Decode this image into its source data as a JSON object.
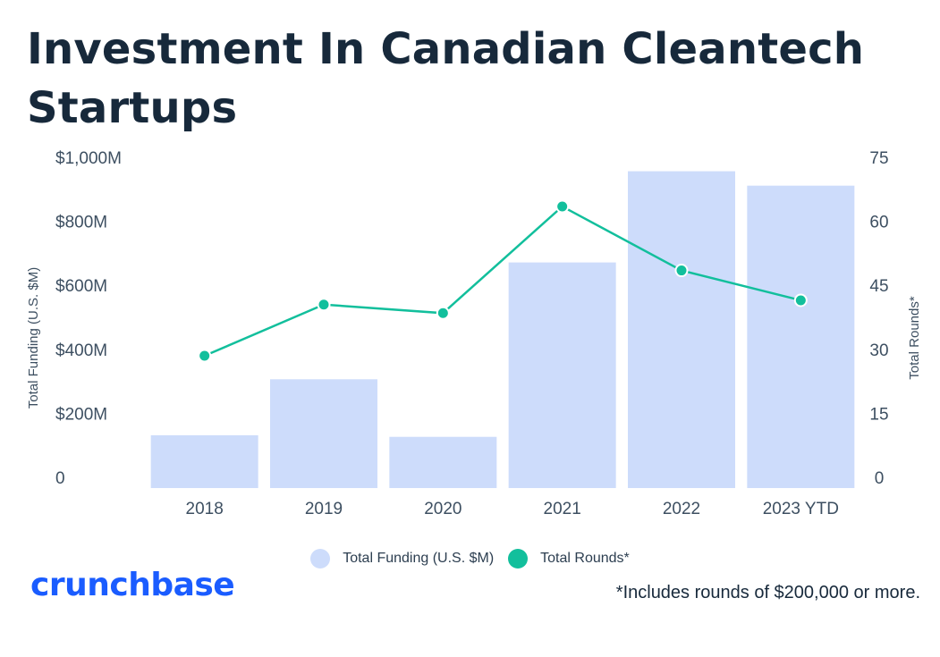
{
  "title": "Investment In Canadian Cleantech Startups",
  "logo": "crunchbase",
  "footnote": "*Includes rounds of $200,000 or more.",
  "colors": {
    "bar": "#cddcfb",
    "line": "#12bf9c",
    "title": "#17293b",
    "brand": "#1a5cff"
  },
  "legend": [
    {
      "label": "Total Funding (U.S. $M)",
      "color": "#cddcfb"
    },
    {
      "label": "Total Rounds*",
      "color": "#12bf9c"
    }
  ],
  "chart_data": {
    "type": "bar",
    "title": "Investment In Canadian Cleantech Startups",
    "categories": [
      "2018",
      "2019",
      "2020",
      "2021",
      "2022",
      "2023 YTD"
    ],
    "series": [
      {
        "name": "Total Funding (U.S. $M)",
        "type": "bar",
        "axis": "left",
        "values": [
          165,
          340,
          160,
          705,
          990,
          945
        ]
      },
      {
        "name": "Total Rounds*",
        "type": "line",
        "axis": "right",
        "values": [
          31,
          43,
          41,
          66,
          51,
          44
        ]
      }
    ],
    "ylabel_left": "Total Funding (U.S. $M)",
    "ylabel_right": "Total Rounds*",
    "ylim_left": [
      0,
      1000
    ],
    "ylim_right": [
      0,
      75
    ],
    "yticks_left": [
      "0",
      "$200M",
      "$400M",
      "$600M",
      "$800M",
      "$1,000M"
    ],
    "yticks_right": [
      "0",
      "15",
      "30",
      "45",
      "60",
      "75"
    ],
    "grid": false,
    "legend_position": "bottom"
  }
}
